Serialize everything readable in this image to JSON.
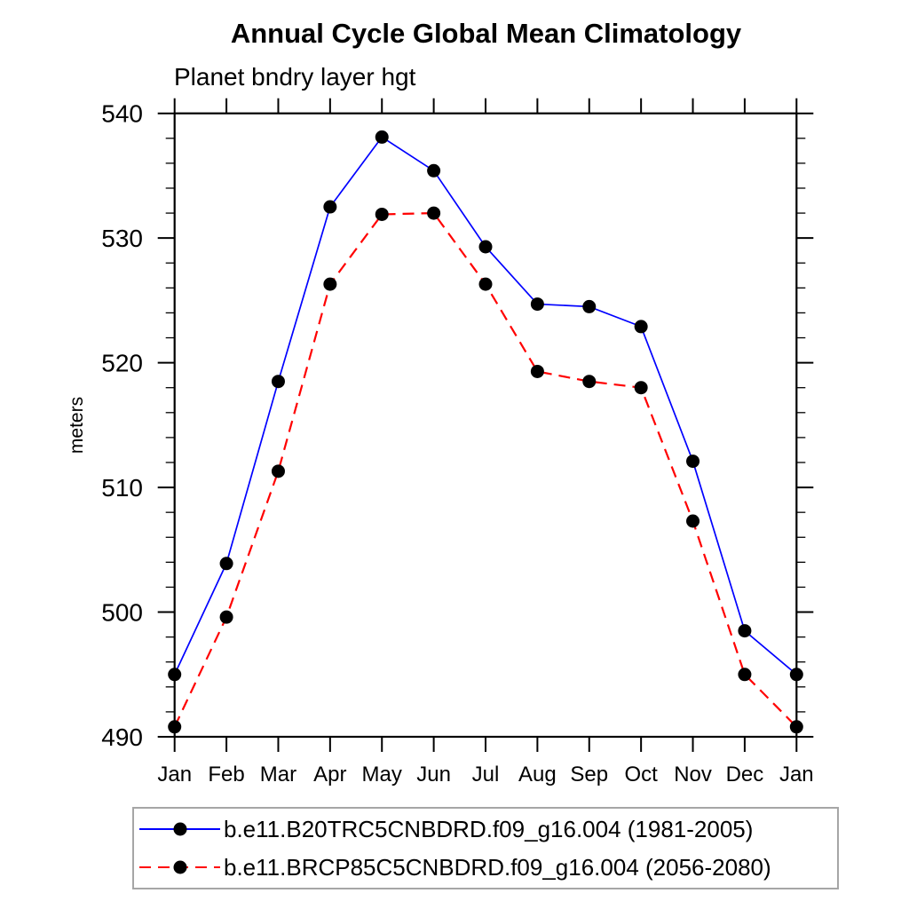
{
  "figure": {
    "background": "#ffffff",
    "axis_color": "#000000"
  },
  "chart_data": {
    "type": "line",
    "title": "Annual Cycle Global Mean Climatology",
    "subtitle": "Planet bndry layer hgt",
    "xlabel": "",
    "ylabel": "meters",
    "x_categories": [
      "Jan",
      "Feb",
      "Mar",
      "Apr",
      "May",
      "Jun",
      "Jul",
      "Aug",
      "Sep",
      "Oct",
      "Nov",
      "Dec",
      "Jan"
    ],
    "ylim": [
      490,
      540
    ],
    "y_major_ticks": [
      490,
      500,
      510,
      520,
      530,
      540
    ],
    "y_minor_step": 2,
    "grid": false,
    "legend_position": "bottom",
    "series": [
      {
        "name": "b.e11.B20TRC5CNBDRD.f09_g16.004 (1981-2005)",
        "color": "#0000ff",
        "line_style": "solid",
        "marker": "filled-circle",
        "marker_color": "#000000",
        "values": [
          495.0,
          503.9,
          518.5,
          532.5,
          538.1,
          535.4,
          529.3,
          524.7,
          524.5,
          522.9,
          512.1,
          498.5,
          495.0
        ]
      },
      {
        "name": "b.e11.BRCP85C5CNBDRD.f09_g16.004 (2056-2080)",
        "color": "#ff0000",
        "line_style": "dashed",
        "marker": "filled-circle",
        "marker_color": "#000000",
        "values": [
          490.8,
          499.6,
          511.3,
          526.3,
          531.9,
          532.0,
          526.3,
          519.3,
          518.5,
          518.0,
          507.3,
          495.0,
          490.8
        ]
      }
    ]
  }
}
